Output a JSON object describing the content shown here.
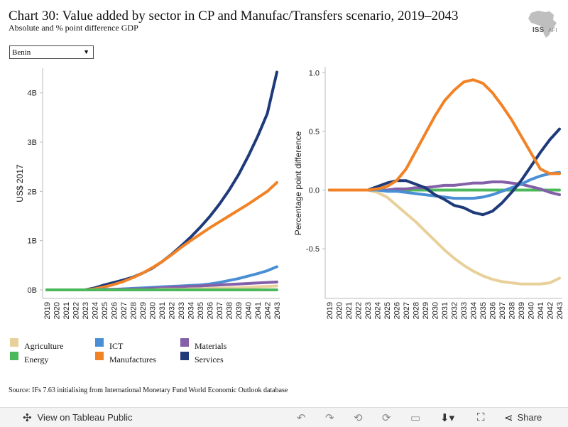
{
  "header": {
    "title": "Chart 30: Value added by sector in CP and Manufac/Transfers scenario, 2019–2043",
    "subtitle": "Absolute and % point difference GDP",
    "logo_text": "ISS",
    "logo_text2": "AFI"
  },
  "filter": {
    "selected": "Benin"
  },
  "legend": [
    {
      "name": "Agriculture",
      "color": "#e8d09a"
    },
    {
      "name": "ICT",
      "color": "#4a8fd4"
    },
    {
      "name": "Materials",
      "color": "#8460a8"
    },
    {
      "name": "Energy",
      "color": "#4cb85c"
    },
    {
      "name": "Manufactures",
      "color": "#f28226"
    },
    {
      "name": "Services",
      "color": "#1f3a7a"
    }
  ],
  "source": "Source: IFs 7.63 initialising from International Monetary Fund World Economic Outlook database",
  "toolbar": {
    "view_label": "View on Tableau Public",
    "share_label": "Share"
  },
  "chart_data": [
    {
      "type": "line",
      "ylabel": "US$ 2017",
      "xlabel": "",
      "ylim": [
        0,
        4.5
      ],
      "y_tick_labels": [
        "0B",
        "1B",
        "2B",
        "3B",
        "4B"
      ],
      "x": [
        2019,
        2020,
        2021,
        2022,
        2023,
        2024,
        2025,
        2026,
        2027,
        2028,
        2029,
        2030,
        2031,
        2032,
        2033,
        2034,
        2035,
        2036,
        2037,
        2038,
        2039,
        2040,
        2041,
        2042,
        2043
      ],
      "series": [
        {
          "name": "Services",
          "color": "#1f3a7a",
          "values": [
            0,
            0,
            0,
            0,
            0,
            0.04,
            0.1,
            0.15,
            0.2,
            0.26,
            0.34,
            0.44,
            0.57,
            0.72,
            0.89,
            1.07,
            1.27,
            1.49,
            1.74,
            2.02,
            2.34,
            2.71,
            3.12,
            3.58,
            4.42
          ]
        },
        {
          "name": "Manufactures",
          "color": "#f28226",
          "values": [
            0,
            0,
            0,
            0,
            0,
            0.02,
            0.06,
            0.11,
            0.17,
            0.25,
            0.34,
            0.45,
            0.57,
            0.71,
            0.86,
            1.0,
            1.13,
            1.26,
            1.38,
            1.5,
            1.62,
            1.74,
            1.87,
            2.0,
            2.18
          ]
        },
        {
          "name": "ICT",
          "color": "#4a8fd4",
          "values": [
            0,
            0,
            0,
            0,
            0,
            0,
            0.01,
            0.01,
            0.02,
            0.03,
            0.04,
            0.05,
            0.06,
            0.07,
            0.08,
            0.09,
            0.1,
            0.12,
            0.15,
            0.19,
            0.23,
            0.28,
            0.33,
            0.39,
            0.47
          ]
        },
        {
          "name": "Materials",
          "color": "#8460a8",
          "values": [
            0,
            0,
            0,
            0,
            0,
            0,
            0,
            0.01,
            0.01,
            0.02,
            0.02,
            0.03,
            0.04,
            0.05,
            0.06,
            0.07,
            0.08,
            0.09,
            0.1,
            0.11,
            0.12,
            0.13,
            0.14,
            0.15,
            0.16
          ]
        },
        {
          "name": "Agriculture",
          "color": "#e8d09a",
          "values": [
            0,
            0,
            0,
            0,
            0,
            0,
            0,
            0,
            0,
            0,
            0,
            0,
            0.01,
            0.01,
            0.01,
            0.02,
            0.02,
            0.03,
            0.03,
            0.04,
            0.04,
            0.05,
            0.06,
            0.07,
            0.08
          ]
        },
        {
          "name": "Energy",
          "color": "#4cb85c",
          "values": [
            0,
            0,
            0,
            0,
            0,
            0,
            0,
            0,
            0,
            0,
            0,
            0,
            0,
            0,
            0,
            0,
            0,
            0,
            0,
            0,
            0,
            0,
            0,
            0,
            0
          ]
        }
      ]
    },
    {
      "type": "line",
      "ylabel": "Percentage point difference",
      "xlabel": "",
      "ylim": [
        -0.85,
        1.0
      ],
      "y_tick_labels": [
        "-0.5",
        "0.0",
        "0.5",
        "1.0"
      ],
      "x": [
        2019,
        2020,
        2021,
        2022,
        2023,
        2024,
        2025,
        2026,
        2027,
        2028,
        2029,
        2030,
        2031,
        2032,
        2033,
        2034,
        2035,
        2036,
        2037,
        2038,
        2039,
        2040,
        2041,
        2042,
        2043
      ],
      "series": [
        {
          "name": "Energy",
          "color": "#4cb85c",
          "values": [
            0,
            0,
            0,
            0,
            0,
            0,
            0,
            0,
            0,
            0,
            0,
            0,
            0,
            0,
            0,
            0,
            0,
            0,
            0,
            0,
            0,
            0,
            0,
            0,
            0
          ]
        },
        {
          "name": "Agriculture",
          "color": "#e8d09a",
          "values": [
            0,
            0,
            0,
            0,
            0,
            -0.02,
            -0.06,
            -0.13,
            -0.2,
            -0.27,
            -0.35,
            -0.43,
            -0.51,
            -0.58,
            -0.64,
            -0.69,
            -0.73,
            -0.76,
            -0.78,
            -0.79,
            -0.8,
            -0.8,
            -0.8,
            -0.79,
            -0.75
          ]
        },
        {
          "name": "Materials",
          "color": "#8460a8",
          "values": [
            0,
            0,
            0,
            0,
            0,
            0,
            0,
            0.01,
            0.01,
            0.02,
            0.02,
            0.03,
            0.04,
            0.04,
            0.05,
            0.06,
            0.06,
            0.07,
            0.07,
            0.06,
            0.05,
            0.03,
            0.01,
            -0.02,
            -0.04
          ]
        },
        {
          "name": "ICT",
          "color": "#4a8fd4",
          "values": [
            0,
            0,
            0,
            0,
            0,
            0,
            -0.01,
            -0.01,
            -0.02,
            -0.03,
            -0.04,
            -0.05,
            -0.06,
            -0.07,
            -0.07,
            -0.07,
            -0.06,
            -0.04,
            -0.01,
            0.02,
            0.05,
            0.09,
            0.12,
            0.14,
            0.15
          ]
        },
        {
          "name": "Services",
          "color": "#1f3a7a",
          "values": [
            0,
            0,
            0,
            0,
            0,
            0.03,
            0.06,
            0.08,
            0.08,
            0.05,
            0.02,
            -0.04,
            -0.08,
            -0.13,
            -0.15,
            -0.19,
            -0.21,
            -0.18,
            -0.11,
            -0.02,
            0.08,
            0.2,
            0.32,
            0.43,
            0.52
          ]
        },
        {
          "name": "Manufactures",
          "color": "#f28226",
          "values": [
            0,
            0,
            0,
            0,
            0,
            0.01,
            0.03,
            0.08,
            0.18,
            0.33,
            0.48,
            0.63,
            0.76,
            0.85,
            0.92,
            0.94,
            0.91,
            0.83,
            0.72,
            0.6,
            0.46,
            0.32,
            0.18,
            0.14,
            0.14
          ]
        }
      ]
    }
  ]
}
